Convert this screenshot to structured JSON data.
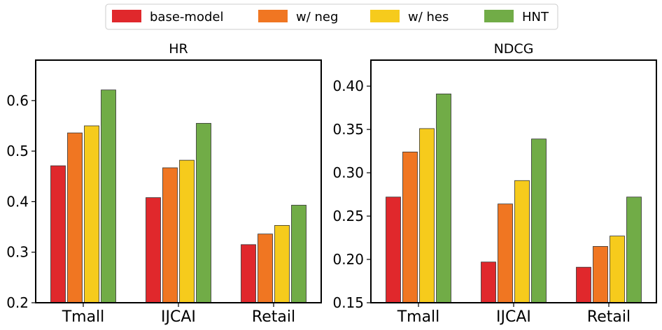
{
  "legend": {
    "entries": [
      {
        "label": "base-model",
        "color": "#e0282c"
      },
      {
        "label": "w/ neg",
        "color": "#f07622"
      },
      {
        "label": "w/ hes",
        "color": "#f6cb1c"
      },
      {
        "label": "HNT",
        "color": "#71ac47"
      }
    ]
  },
  "chart_data": [
    {
      "type": "bar",
      "title": "HR",
      "categories": [
        "Tmall",
        "IJCAI",
        "Retail"
      ],
      "ylim": [
        0.2,
        0.68
      ],
      "yticks": [
        0.2,
        0.3,
        0.4,
        0.5,
        0.6
      ],
      "ytick_labels": [
        "0.2",
        "0.3",
        "0.4",
        "0.5",
        "0.6"
      ],
      "series": [
        {
          "name": "base-model",
          "values": [
            0.471,
            0.408,
            0.315
          ]
        },
        {
          "name": "w/ neg",
          "values": [
            0.536,
            0.467,
            0.336
          ]
        },
        {
          "name": "w/ hes",
          "values": [
            0.55,
            0.482,
            0.353
          ]
        },
        {
          "name": "HNT",
          "values": [
            0.621,
            0.555,
            0.393
          ]
        }
      ]
    },
    {
      "type": "bar",
      "title": "NDCG",
      "categories": [
        "Tmall",
        "IJCAI",
        "Retail"
      ],
      "ylim": [
        0.15,
        0.43
      ],
      "yticks": [
        0.15,
        0.2,
        0.25,
        0.3,
        0.35,
        0.4
      ],
      "ytick_labels": [
        "0.15",
        "0.20",
        "0.25",
        "0.30",
        "0.35",
        "0.40"
      ],
      "series": [
        {
          "name": "base-model",
          "values": [
            0.272,
            0.197,
            0.191
          ]
        },
        {
          "name": "w/ neg",
          "values": [
            0.324,
            0.264,
            0.215
          ]
        },
        {
          "name": "w/ hes",
          "values": [
            0.351,
            0.291,
            0.227
          ]
        },
        {
          "name": "HNT",
          "values": [
            0.391,
            0.339,
            0.272
          ]
        }
      ]
    }
  ]
}
